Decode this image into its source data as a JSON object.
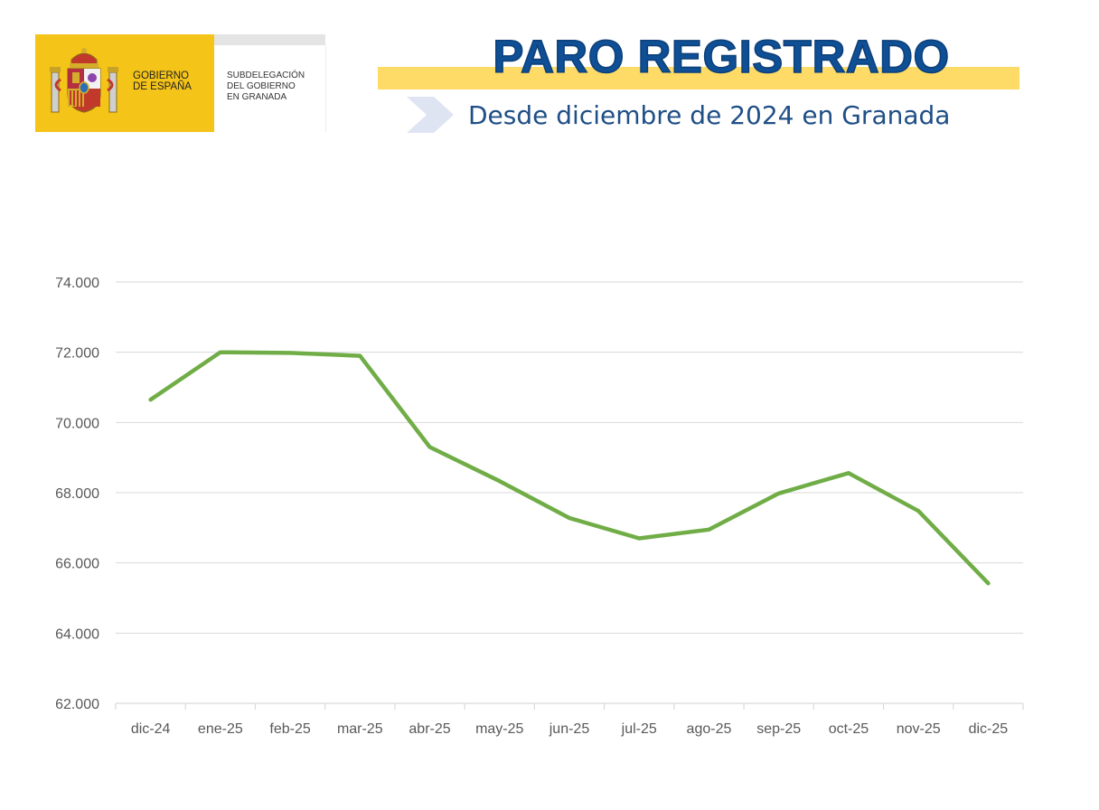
{
  "header": {
    "government_line1": "GOBIERNO",
    "government_line2": "DE ESPAÑA",
    "subdelegation_line1": "SUBDELEGACIÓN",
    "subdelegation_line2": "DEL GOBIERNO",
    "subdelegation_line3": "EN GRANADA",
    "title": "PARO REGISTRADO",
    "subtitle": "Desde diciembre de 2024 en Granada"
  },
  "colors": {
    "title": "#0f4f95",
    "subtitle": "#1f4f86",
    "band": "#fddb66",
    "logo_yellow": "#f5c418",
    "line": "#70ad47",
    "grid": "#d9d9d9"
  },
  "chart_data": {
    "type": "line",
    "categories": [
      "dic-24",
      "ene-25",
      "feb-25",
      "mar-25",
      "abr-25",
      "may-25",
      "jun-25",
      "jul-25",
      "ago-25",
      "sep-25",
      "oct-25",
      "nov-25",
      "dic-25"
    ],
    "series": [
      {
        "values": [
          70650,
          72000,
          71980,
          71900,
          69300,
          68330,
          67280,
          66700,
          66950,
          67980,
          68560,
          67480,
          65420
        ]
      }
    ],
    "yticks": [
      "62.000",
      "64.000",
      "66.000",
      "68.000",
      "70.000",
      "72.000",
      "74.000"
    ],
    "ylim": [
      62000,
      74000
    ],
    "grid": true,
    "legend": "none"
  }
}
